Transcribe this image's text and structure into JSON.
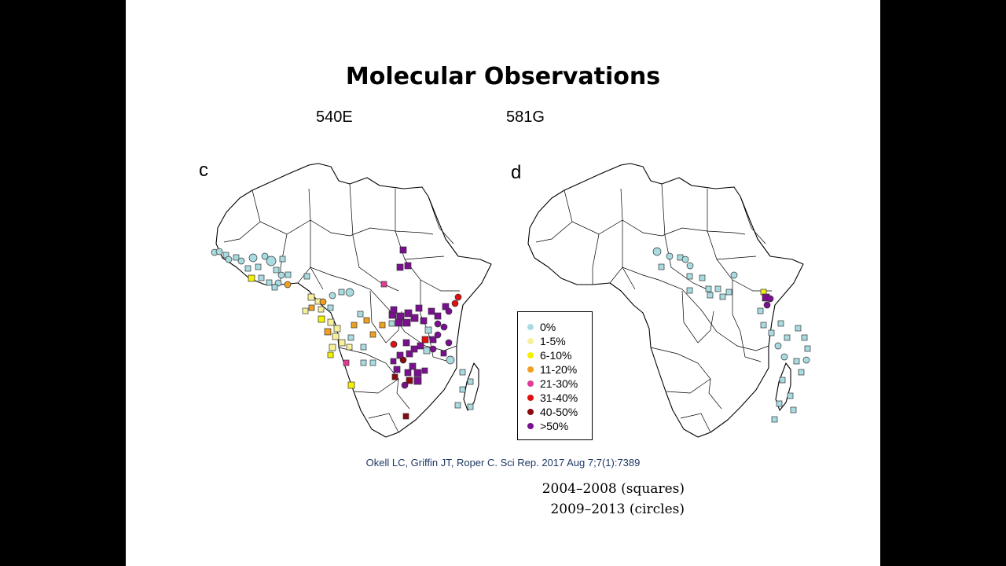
{
  "slide": {
    "title": "Molecular Observations",
    "column_labels": [
      "540E",
      "581G"
    ],
    "panels": [
      {
        "letter": "c",
        "mutation": "540E"
      },
      {
        "letter": "d",
        "mutation": "581G"
      }
    ],
    "legend": [
      {
        "label": "0%",
        "color": "#a9dce0"
      },
      {
        "label": "1-5%",
        "color": "#f7f09a"
      },
      {
        "label": "6-10%",
        "color": "#f5f000"
      },
      {
        "label": "11-20%",
        "color": "#f0a020"
      },
      {
        "label": "21-30%",
        "color": "#e03c96"
      },
      {
        "label": "31-40%",
        "color": "#e01010"
      },
      {
        "label": "40-50%",
        "color": "#8a0a10"
      },
      {
        "label": ">50%",
        "color": "#7a1090"
      }
    ],
    "citation": "Okell LC, Griffin JT, Roper C. Sci Rep. 2017 Aug 7;7(1):7389",
    "periods": [
      "2004–2008 (squares)",
      "2009–2013 (circles)"
    ]
  }
}
